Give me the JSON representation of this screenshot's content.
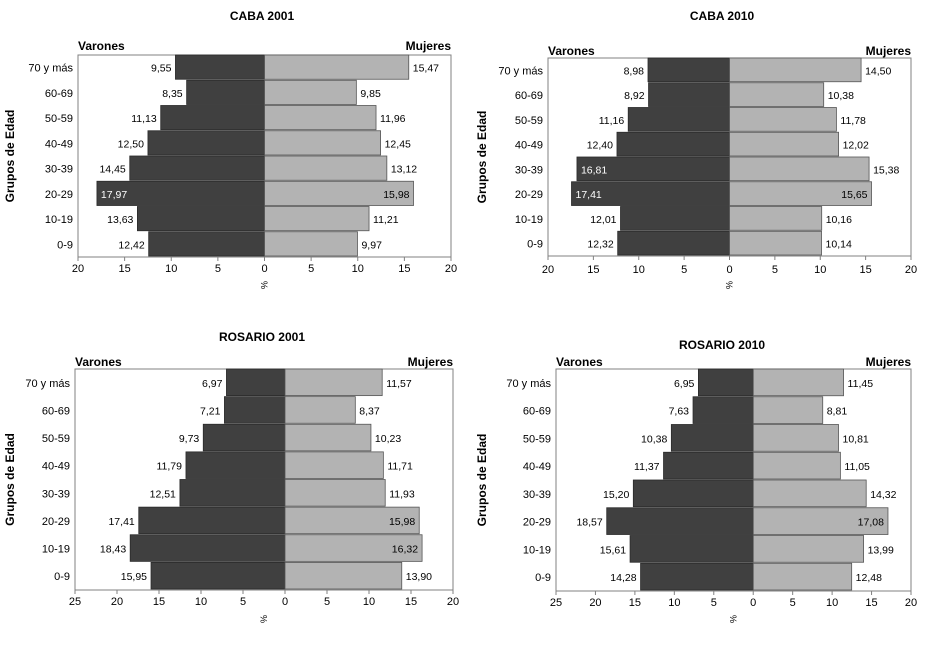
{
  "chart_data": [
    {
      "type": "bar",
      "title": "CABA 2001",
      "left_label": "Varones",
      "right_label": "Mujeres",
      "ylabel": "Grupos de Edad",
      "xlabel": "%",
      "categories": [
        "70 y más",
        "60-69",
        "50-59",
        "40-49",
        "30-39",
        "20-29",
        "10-19",
        "0-9"
      ],
      "series": [
        {
          "name": "Varones",
          "color": "#404040",
          "values": [
            9.55,
            8.35,
            11.13,
            12.5,
            14.45,
            17.97,
            13.63,
            12.42
          ],
          "labels": [
            "9,55",
            "8,35",
            "11,13",
            "12,50",
            "14,45",
            "17,97",
            "13,63",
            "12,42"
          ]
        },
        {
          "name": "Mujeres",
          "color": "#b3b3b3",
          "values": [
            15.47,
            9.85,
            11.96,
            12.45,
            13.12,
            15.98,
            11.21,
            9.97
          ],
          "labels": [
            "15,47",
            "9,85",
            "11,96",
            "12,45",
            "13,12",
            "15,98",
            "11,21",
            "9,97"
          ]
        }
      ],
      "xlim": [
        -20,
        20
      ],
      "ticks": [
        "20",
        "15",
        "10",
        "5",
        "0",
        "5",
        "10",
        "15",
        "20"
      ]
    },
    {
      "type": "bar",
      "title": "CABA 2010",
      "left_label": "Varones",
      "right_label": "Mujeres",
      "ylabel": "Grupos de Edad",
      "xlabel": "%",
      "categories": [
        "70 y más",
        "60-69",
        "50-59",
        "40-49",
        "30-39",
        "20-29",
        "10-19",
        "0-9"
      ],
      "series": [
        {
          "name": "Varones",
          "color": "#404040",
          "values": [
            8.98,
            8.92,
            11.16,
            12.4,
            16.81,
            17.41,
            12.01,
            12.32
          ],
          "labels": [
            "8,98",
            "8,92",
            "11,16",
            "12,40",
            "16,81",
            "17,41",
            "12,01",
            "12,32"
          ]
        },
        {
          "name": "Mujeres",
          "color": "#b3b3b3",
          "values": [
            14.5,
            10.38,
            11.78,
            12.02,
            15.38,
            15.65,
            10.16,
            10.14
          ],
          "labels": [
            "14,50",
            "10,38",
            "11,78",
            "12,02",
            "15,38",
            "15,65",
            "10,16",
            "10,14"
          ]
        }
      ],
      "xlim": [
        -20,
        20
      ],
      "ticks": [
        "20",
        "15",
        "10",
        "5",
        "0",
        "5",
        "10",
        "15",
        "20"
      ]
    },
    {
      "type": "bar",
      "title": "ROSARIO 2001",
      "left_label": "Varones",
      "right_label": "Mujeres",
      "ylabel": "Grupos de Edad",
      "xlabel": "%",
      "categories": [
        "70 y más",
        "60-69",
        "50-59",
        "40-49",
        "30-39",
        "20-29",
        "10-19",
        "0-9"
      ],
      "series": [
        {
          "name": "Varones",
          "color": "#404040",
          "values": [
            6.97,
            7.21,
            9.73,
            11.79,
            12.51,
            17.41,
            18.43,
            15.95
          ],
          "labels": [
            "6,97",
            "7,21",
            "9,73",
            "11,79",
            "12,51",
            "17,41",
            "18,43",
            "15,95"
          ]
        },
        {
          "name": "Mujeres",
          "color": "#b3b3b3",
          "values": [
            11.57,
            8.37,
            10.23,
            11.71,
            11.93,
            15.98,
            16.32,
            13.9
          ],
          "labels": [
            "11,57",
            "8,37",
            "10,23",
            "11,71",
            "11,93",
            "15,98",
            "16,32",
            "13,90"
          ]
        }
      ],
      "xlim": [
        -25,
        20
      ],
      "ticks": [
        "25",
        "20",
        "15",
        "10",
        "5",
        "0",
        "5",
        "10",
        "15",
        "20"
      ]
    },
    {
      "type": "bar",
      "title": "ROSARIO 2010",
      "left_label": "Varones",
      "right_label": "Mujeres",
      "ylabel": "Grupos de Edad",
      "xlabel": "%",
      "categories": [
        "70 y más",
        "60-69",
        "50-59",
        "40-49",
        "30-39",
        "20-29",
        "10-19",
        "0-9"
      ],
      "series": [
        {
          "name": "Varones",
          "color": "#404040",
          "values": [
            6.95,
            7.63,
            10.38,
            11.37,
            15.2,
            18.57,
            15.61,
            14.28
          ],
          "labels": [
            "6,95",
            "7,63",
            "10,38",
            "11,37",
            "15,20",
            "18,57",
            "15,61",
            "14,28"
          ]
        },
        {
          "name": "Mujeres",
          "color": "#b3b3b3",
          "values": [
            11.45,
            8.81,
            10.81,
            11.05,
            14.32,
            17.08,
            13.99,
            12.48
          ],
          "labels": [
            "11,45",
            "8,81",
            "10,81",
            "11,05",
            "14,32",
            "17,08",
            "13,99",
            "12,48"
          ]
        }
      ],
      "xlim": [
        -25,
        20
      ],
      "ticks": [
        "25",
        "20",
        "15",
        "10",
        "5",
        "0",
        "5",
        "10",
        "15",
        "20"
      ]
    }
  ]
}
